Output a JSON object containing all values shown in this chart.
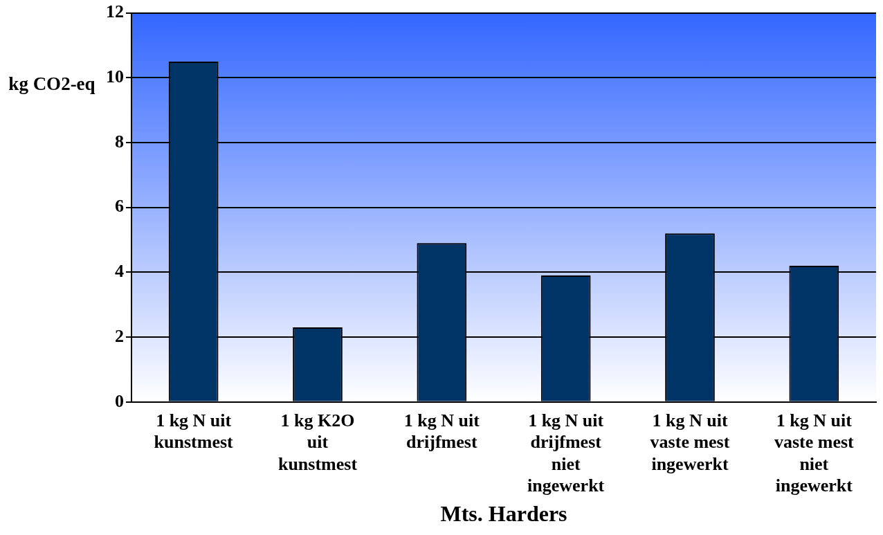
{
  "chart_data": {
    "type": "bar",
    "xlabel": "Mts. Harders",
    "ylabel": "kg CO2-eq",
    "categories": [
      "1 kg N uit kunstmest",
      "1 kg K2O uit kunstmest",
      "1 kg N uit drijfmest",
      "1 kg N uit drijfmest niet ingewerkt",
      "1 kg N uit vaste mest ingewerkt",
      "1 kg N uit vaste mest niet ingewerkt"
    ],
    "values": [
      10.5,
      2.3,
      4.9,
      3.9,
      5.2,
      4.2
    ],
    "color": "#003366",
    "ylim": [
      0,
      12
    ],
    "yticks": [
      0,
      2,
      4,
      6,
      8,
      10,
      12
    ],
    "grid": "y",
    "legend": false
  }
}
